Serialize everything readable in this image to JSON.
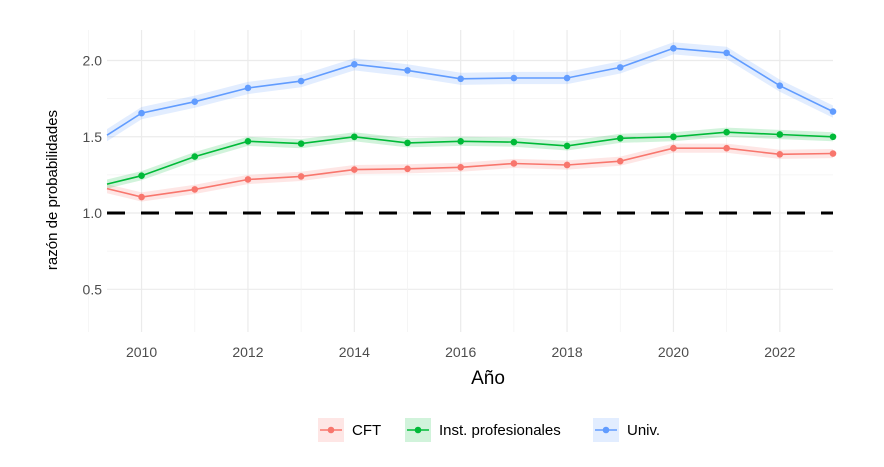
{
  "chart_data": {
    "type": "line",
    "title": "",
    "xlabel": "Año",
    "ylabel": "razón de probabilidades",
    "xlim": [
      2009.35,
      2023.0
    ],
    "ylim": [
      0.22,
      2.2
    ],
    "x_ticks": [
      2010,
      2012,
      2014,
      2016,
      2018,
      2020,
      2022
    ],
    "y_ticks": [
      0.5,
      1.0,
      1.5,
      2.0
    ],
    "x_tick_labels": [
      "2010",
      "2012",
      "2014",
      "2016",
      "2018",
      "2020",
      "2022"
    ],
    "y_tick_labels": [
      "0.5",
      "1.0",
      "1.5",
      "2.0"
    ],
    "reference_line": {
      "y": 1.0,
      "style": "dashed",
      "color": "#000000"
    },
    "grid": true,
    "legend_position": "bottom",
    "x": [
      2009.35,
      2010,
      2011,
      2012,
      2013,
      2014,
      2015,
      2016,
      2017,
      2018,
      2019,
      2020,
      2021,
      2022,
      2023
    ],
    "series": [
      {
        "name": "CFT",
        "color": "#F8766D",
        "values": [
          1.16,
          1.105,
          1.155,
          1.22,
          1.24,
          1.285,
          1.29,
          1.3,
          1.325,
          1.315,
          1.34,
          1.425,
          1.425,
          1.385,
          1.39
        ],
        "band": 0.03
      },
      {
        "name": "Inst. profesionales",
        "color": "#00BA38",
        "values": [
          1.19,
          1.245,
          1.37,
          1.47,
          1.455,
          1.5,
          1.46,
          1.47,
          1.465,
          1.44,
          1.49,
          1.5,
          1.53,
          1.515,
          1.5
        ],
        "band": 0.03
      },
      {
        "name": "Univ.",
        "color": "#619CFF",
        "values": [
          1.51,
          1.655,
          1.73,
          1.82,
          1.865,
          1.975,
          1.935,
          1.88,
          1.885,
          1.885,
          1.955,
          2.08,
          2.05,
          1.835,
          1.665
        ],
        "band": 0.04
      }
    ]
  }
}
